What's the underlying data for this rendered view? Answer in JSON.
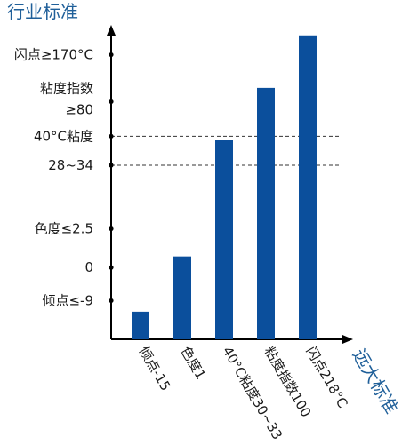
{
  "chart_data": {
    "type": "bar",
    "ylabel": "行业标准",
    "xlabel": "远大标准",
    "bar_color": "#0b4f9c",
    "categories": [
      "倾点-15",
      "色度1",
      "40°C粘度30~33",
      "粘度指数100",
      "闪点218°C"
    ],
    "values": [
      1,
      3,
      7.2,
      9.1,
      11
    ],
    "ylim": [
      0,
      11.7
    ],
    "y_ticks": [
      {
        "label": [
          "倾点≤-9"
        ],
        "value": 1.4
      },
      {
        "label": [
          "0"
        ],
        "value": 2.6
      },
      {
        "label": [
          "色度≤2.5"
        ],
        "value": 4.0
      },
      {
        "label": [
          "40°C粘度",
          "28~34"
        ],
        "value": 6.3,
        "dashed_value": 6.3,
        "dashed_value_top": 7.35
      },
      {
        "label": [
          "粘度指数",
          "≥80"
        ],
        "value": 8.6
      },
      {
        "label": [
          "闪点≥170°C"
        ],
        "value": 10.3
      }
    ],
    "reference_lines": [
      6.3,
      7.35
    ],
    "grid": false
  }
}
